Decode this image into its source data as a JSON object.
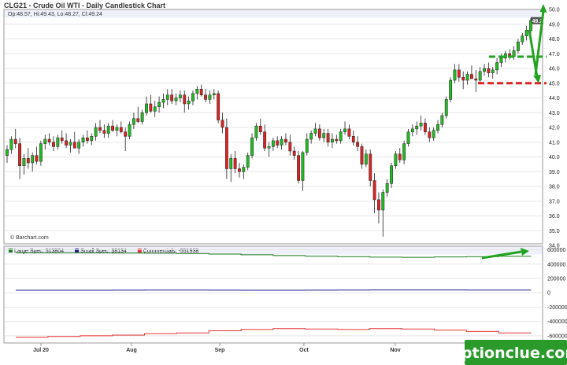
{
  "header": {
    "title": "CLG21 - Crude Oil WTI - Daily Candlestick Chart",
    "ohlc": "Op:48.57, Hi:49.43, Lo:48.27, Cl:49.24"
  },
  "credit": "© Barchart.com",
  "watermark": "optionclue.com",
  "colors": {
    "up": "#22bb22",
    "down": "#dd2222",
    "green_line": "#1a7a1a",
    "blue_line": "#1a1a8a",
    "red_line": "#e53333",
    "annotation": "#22a322",
    "watermark_bg": "#2a9a2a"
  },
  "chart_data": [
    {
      "type": "candlestick",
      "title": "CLG21 - Crude Oil WTI - Daily Candlestick Chart",
      "ylim": [
        34,
        50
      ],
      "y_ticks": [
        "34.0",
        "35.0",
        "36.0",
        "37.0",
        "38.0",
        "39.0",
        "40.0",
        "41.0",
        "42.0",
        "43.0",
        "44.0",
        "45.0",
        "46.0",
        "47.0",
        "48.0",
        "49.0",
        "50.0"
      ],
      "x_ticks": [
        "Jul 20",
        "Aug",
        "Sep",
        "Oct",
        "Nov",
        "Dec"
      ],
      "last_price_label": "49.24",
      "annotations": {
        "resistance_level": 45.0,
        "support_level": 46.8
      },
      "candles": [
        [
          40.1,
          40.8,
          39.6,
          40.5
        ],
        [
          40.5,
          41.4,
          40.2,
          41.2
        ],
        [
          41.2,
          41.9,
          40.6,
          40.9
        ],
        [
          40.9,
          41.3,
          38.5,
          39.4
        ],
        [
          39.4,
          40.2,
          38.8,
          39.9
        ],
        [
          39.9,
          40.6,
          39.2,
          39.6
        ],
        [
          39.6,
          40.3,
          39.0,
          40.1
        ],
        [
          40.1,
          40.7,
          39.5,
          39.7
        ],
        [
          39.7,
          41.1,
          39.4,
          40.9
        ],
        [
          40.9,
          41.5,
          40.5,
          41.2
        ],
        [
          41.2,
          41.6,
          40.8,
          41.0
        ],
        [
          41.0,
          41.4,
          40.4,
          40.7
        ],
        [
          40.7,
          41.5,
          40.5,
          41.3
        ],
        [
          41.3,
          41.8,
          40.9,
          41.1
        ],
        [
          41.1,
          41.6,
          40.6,
          40.8
        ],
        [
          40.8,
          41.2,
          40.3,
          41.0
        ],
        [
          41.0,
          41.7,
          40.6,
          40.6
        ],
        [
          40.6,
          41.2,
          40.2,
          41.0
        ],
        [
          41.0,
          41.5,
          40.7,
          41.3
        ],
        [
          41.3,
          41.8,
          40.9,
          41.1
        ],
        [
          41.1,
          41.6,
          40.8,
          41.4
        ],
        [
          41.4,
          42.3,
          41.1,
          42.0
        ],
        [
          42.0,
          42.5,
          41.6,
          41.8
        ],
        [
          41.8,
          42.2,
          41.3,
          41.6
        ],
        [
          41.6,
          42.3,
          41.3,
          42.1
        ],
        [
          42.1,
          42.5,
          41.7,
          41.8
        ],
        [
          41.8,
          42.2,
          41.4,
          42.0
        ],
        [
          42.0,
          42.4,
          41.6,
          41.7
        ],
        [
          41.7,
          42.0,
          40.4,
          41.4
        ],
        [
          41.4,
          42.4,
          41.2,
          42.2
        ],
        [
          42.2,
          43.0,
          41.9,
          42.6
        ],
        [
          42.6,
          43.4,
          42.3,
          42.4
        ],
        [
          42.4,
          43.2,
          42.2,
          43.0
        ],
        [
          43.0,
          44.1,
          42.8,
          43.6
        ],
        [
          43.6,
          44.2,
          43.0,
          43.1
        ],
        [
          43.1,
          43.8,
          42.7,
          43.4
        ],
        [
          43.4,
          44.1,
          43.0,
          43.7
        ],
        [
          43.7,
          44.3,
          43.3,
          43.9
        ],
        [
          43.9,
          44.6,
          43.5,
          44.2
        ],
        [
          44.2,
          44.6,
          43.6,
          43.8
        ],
        [
          43.8,
          44.3,
          43.5,
          44.0
        ],
        [
          44.0,
          44.5,
          43.7,
          44.2
        ],
        [
          44.2,
          44.5,
          43.0,
          43.6
        ],
        [
          43.6,
          44.1,
          43.2,
          43.8
        ],
        [
          43.8,
          44.5,
          43.5,
          44.3
        ],
        [
          44.3,
          44.8,
          43.9,
          44.6
        ],
        [
          44.6,
          44.9,
          44.1,
          44.2
        ],
        [
          44.2,
          44.6,
          43.7,
          43.9
        ],
        [
          43.9,
          44.5,
          43.6,
          44.2
        ],
        [
          44.2,
          44.6,
          43.9,
          44.3
        ],
        [
          44.3,
          44.5,
          42.3,
          42.5
        ],
        [
          42.5,
          43.0,
          41.6,
          42.0
        ],
        [
          42.0,
          42.6,
          38.5,
          39.2
        ],
        [
          39.2,
          40.2,
          38.3,
          39.9
        ],
        [
          39.9,
          40.4,
          38.9,
          39.2
        ],
        [
          39.2,
          39.6,
          38.6,
          39.0
        ],
        [
          39.0,
          39.5,
          38.5,
          39.3
        ],
        [
          39.3,
          40.3,
          39.1,
          40.1
        ],
        [
          40.1,
          41.6,
          39.9,
          41.3
        ],
        [
          41.3,
          42.3,
          41.1,
          42.1
        ],
        [
          42.1,
          42.6,
          41.5,
          41.7
        ],
        [
          41.7,
          42.2,
          40.4,
          40.6
        ],
        [
          40.6,
          41.0,
          40.0,
          40.7
        ],
        [
          40.7,
          41.3,
          40.4,
          41.1
        ],
        [
          41.1,
          41.4,
          40.6,
          40.8
        ],
        [
          40.8,
          41.4,
          40.5,
          41.2
        ],
        [
          41.2,
          41.6,
          40.8,
          41.0
        ],
        [
          41.0,
          41.5,
          40.1,
          40.4
        ],
        [
          40.4,
          40.7,
          39.8,
          40.1
        ],
        [
          40.1,
          40.4,
          38.2,
          38.4
        ],
        [
          38.4,
          40.4,
          37.7,
          40.3
        ],
        [
          40.3,
          41.6,
          40.1,
          41.2
        ],
        [
          41.2,
          41.8,
          40.9,
          41.6
        ],
        [
          41.6,
          42.3,
          41.4,
          41.9
        ],
        [
          41.9,
          42.2,
          41.1,
          41.3
        ],
        [
          41.3,
          41.9,
          41.0,
          41.6
        ],
        [
          41.6,
          41.9,
          40.7,
          41.0
        ],
        [
          41.0,
          41.6,
          40.6,
          41.2
        ],
        [
          41.2,
          41.5,
          40.9,
          41.1
        ],
        [
          41.1,
          41.9,
          40.9,
          41.7
        ],
        [
          41.7,
          42.4,
          41.5,
          41.9
        ],
        [
          41.9,
          42.2,
          41.2,
          41.4
        ],
        [
          41.4,
          41.8,
          40.8,
          41.0
        ],
        [
          41.0,
          41.4,
          40.4,
          40.7
        ],
        [
          40.7,
          40.9,
          39.2,
          39.5
        ],
        [
          39.5,
          40.5,
          39.3,
          40.2
        ],
        [
          40.2,
          40.5,
          38.0,
          38.4
        ],
        [
          38.4,
          38.9,
          36.2,
          37.1
        ],
        [
          37.1,
          37.6,
          35.5,
          36.4
        ],
        [
          36.4,
          37.8,
          34.6,
          37.6
        ],
        [
          37.6,
          38.5,
          37.3,
          38.2
        ],
        [
          38.2,
          39.6,
          37.9,
          39.4
        ],
        [
          39.4,
          40.4,
          39.2,
          40.2
        ],
        [
          40.2,
          40.6,
          39.6,
          39.8
        ],
        [
          39.8,
          41.1,
          39.5,
          40.9
        ],
        [
          40.9,
          41.9,
          40.7,
          41.7
        ],
        [
          41.7,
          42.2,
          41.4,
          41.9
        ],
        [
          41.9,
          42.4,
          41.5,
          42.1
        ],
        [
          42.1,
          42.8,
          41.8,
          42.3
        ],
        [
          42.3,
          42.6,
          41.5,
          41.7
        ],
        [
          41.7,
          42.0,
          41.0,
          41.3
        ],
        [
          41.3,
          42.0,
          41.1,
          41.8
        ],
        [
          41.8,
          42.5,
          41.6,
          42.2
        ],
        [
          42.2,
          43.0,
          42.0,
          42.8
        ],
        [
          42.8,
          44.1,
          42.6,
          43.9
        ],
        [
          43.9,
          45.4,
          43.7,
          45.2
        ],
        [
          45.2,
          46.3,
          45.0,
          45.9
        ],
        [
          45.9,
          46.3,
          45.1,
          45.4
        ],
        [
          45.4,
          45.8,
          44.6,
          45.2
        ],
        [
          45.2,
          45.8,
          44.9,
          45.6
        ],
        [
          45.6,
          46.2,
          45.3,
          45.3
        ],
        [
          45.3,
          45.9,
          44.4,
          45.2
        ],
        [
          45.2,
          46.1,
          45.0,
          45.8
        ],
        [
          45.8,
          46.3,
          45.5,
          46.0
        ],
        [
          46.0,
          46.4,
          45.4,
          45.7
        ],
        [
          45.7,
          46.1,
          45.3,
          45.9
        ],
        [
          45.9,
          46.7,
          45.6,
          46.4
        ],
        [
          46.4,
          47.0,
          46.1,
          46.7
        ],
        [
          46.7,
          47.2,
          46.4,
          47.0
        ],
        [
          47.0,
          47.3,
          46.6,
          46.8
        ],
        [
          46.8,
          47.5,
          46.6,
          47.2
        ],
        [
          47.2,
          48.0,
          47.0,
          47.8
        ],
        [
          47.8,
          48.4,
          47.6,
          48.2
        ],
        [
          48.2,
          48.9,
          47.9,
          48.6
        ],
        [
          48.57,
          49.43,
          48.27,
          49.24
        ]
      ]
    },
    {
      "type": "line",
      "series": [
        {
          "name": "Large Spec",
          "value_label": "513804",
          "color": "#1a7a1a",
          "values": [
            560000,
            560000,
            558000,
            556000,
            552000,
            548000,
            540000,
            530000,
            520000,
            512000,
            505000,
            498000,
            495000,
            500000,
            505000,
            510000,
            513804
          ]
        },
        {
          "name": "Small Spec",
          "value_label": "38134",
          "color": "#1a1a8a",
          "values": [
            35000,
            36000,
            36000,
            37000,
            38000,
            38000,
            37000,
            36000,
            36000,
            37000,
            38000,
            39000,
            40000,
            39000,
            38000,
            38000,
            38134
          ]
        },
        {
          "name": "Commercials",
          "value_label": "-551938",
          "color": "#e53333",
          "values": [
            -620000,
            -610000,
            -600000,
            -590000,
            -570000,
            -560000,
            -530000,
            -510000,
            -500000,
            -505000,
            -510000,
            -500000,
            -505000,
            -520000,
            -540000,
            -560000,
            -551938
          ]
        }
      ],
      "ylim": [
        -700000,
        650000
      ],
      "y_ticks": [
        "600000",
        "400000",
        "200000",
        "0",
        "-200000",
        "-400000",
        "-600000"
      ]
    }
  ]
}
